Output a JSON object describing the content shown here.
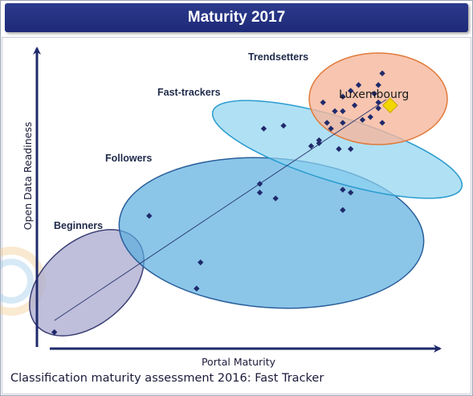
{
  "header": {
    "title": "Maturity 2017"
  },
  "caption": "Classification maturity assessment 2016: Fast Tracker",
  "colors": {
    "header_bg": "#1e2a78",
    "axis": "#1f2a6b",
    "point": "#1f2a6b",
    "highlight": "#f2d600",
    "beginners_fill": "#a9a9cf",
    "followers_fill": "#5aaee0",
    "fasttrackers_fill": "#8fd3f0",
    "trendsetters_fill": "#f6b79c",
    "trendsetters_stroke": "#e07a3a"
  },
  "chart_data": {
    "type": "scatter",
    "xlabel": "Portal Maturity",
    "ylabel": "Open Data Readiness",
    "clusters": [
      {
        "name": "Beginners"
      },
      {
        "name": "Followers"
      },
      {
        "name": "Fast-trackers"
      },
      {
        "name": "Trendsetters"
      }
    ],
    "points": [
      [
        0.04,
        0.04
      ],
      [
        0.28,
        0.44
      ],
      [
        0.41,
        0.28
      ],
      [
        0.4,
        0.19
      ],
      [
        0.56,
        0.52
      ],
      [
        0.56,
        0.55
      ],
      [
        0.6,
        0.5
      ],
      [
        0.77,
        0.46
      ],
      [
        0.79,
        0.52
      ],
      [
        0.77,
        0.53
      ],
      [
        0.57,
        0.74
      ],
      [
        0.62,
        0.75
      ],
      [
        0.71,
        0.69
      ],
      [
        0.71,
        0.7
      ],
      [
        0.69,
        0.68
      ],
      [
        0.76,
        0.67
      ],
      [
        0.79,
        0.67
      ],
      [
        0.74,
        0.74
      ],
      [
        0.73,
        0.76
      ],
      [
        0.75,
        0.8
      ],
      [
        0.77,
        0.8
      ],
      [
        0.8,
        0.82
      ],
      [
        0.86,
        0.83
      ],
      [
        0.84,
        0.78
      ],
      [
        0.77,
        0.76
      ],
      [
        0.82,
        0.77
      ],
      [
        0.87,
        0.76
      ],
      [
        0.86,
        0.81
      ],
      [
        0.79,
        0.87
      ],
      [
        0.81,
        0.89
      ],
      [
        0.86,
        0.89
      ],
      [
        0.87,
        0.93
      ],
      [
        0.85,
        0.86
      ],
      [
        0.77,
        0.85
      ],
      [
        0.72,
        0.83
      ]
    ],
    "highlight": {
      "label": "Luxembourg",
      "x": 0.89,
      "y": 0.82
    },
    "trend_line": [
      [
        0.04,
        0.08
      ],
      [
        0.88,
        0.84
      ]
    ]
  }
}
